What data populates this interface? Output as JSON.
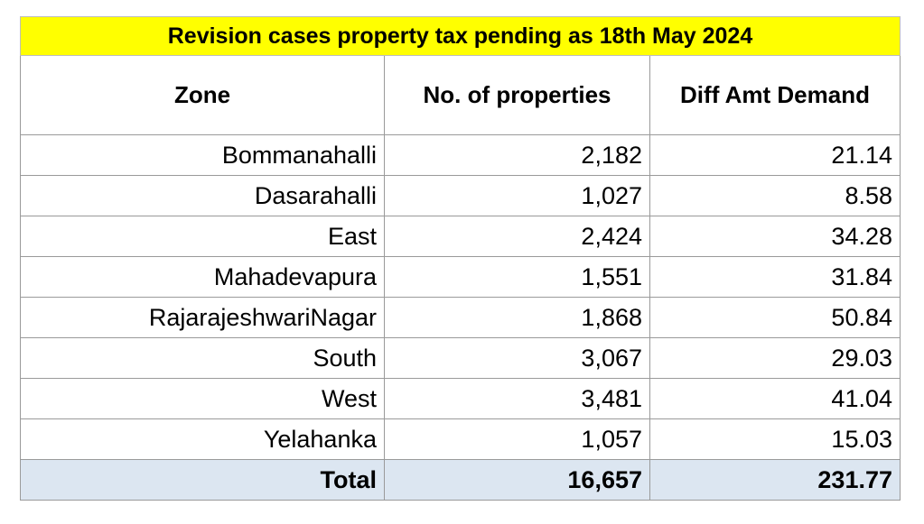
{
  "title": "Revision cases property tax pending as 18th May 2024",
  "columns": [
    "Zone",
    "No. of properties",
    "Diff Amt Demand"
  ],
  "rows": [
    {
      "zone": "Bommanahalli",
      "properties": "2,182",
      "diff": "21.14"
    },
    {
      "zone": "Dasarahalli",
      "properties": "1,027",
      "diff": "8.58"
    },
    {
      "zone": "East",
      "properties": "2,424",
      "diff": "34.28"
    },
    {
      "zone": "Mahadevapura",
      "properties": "1,551",
      "diff": "31.84"
    },
    {
      "zone": "RajarajeshwariNagar",
      "properties": "1,868",
      "diff": "50.84"
    },
    {
      "zone": "South",
      "properties": "3,067",
      "diff": "29.03"
    },
    {
      "zone": "West",
      "properties": "3,481",
      "diff": "41.04"
    },
    {
      "zone": "Yelahanka",
      "properties": "1,057",
      "diff": "15.03"
    }
  ],
  "total": {
    "label": "Total",
    "properties": "16,657",
    "diff": "231.77"
  },
  "colors": {
    "title_background": "#ffff00",
    "total_background": "#dce6f1",
    "grid_line": "#9a9a9a"
  }
}
